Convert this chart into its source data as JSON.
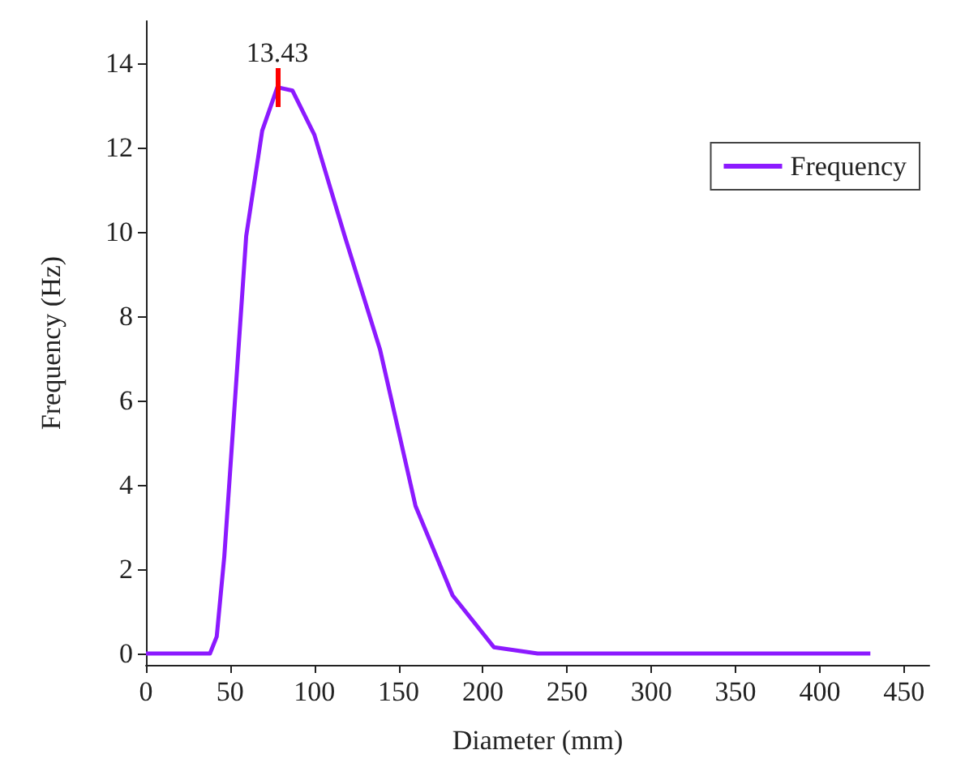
{
  "chart_data": {
    "type": "line",
    "xlabel": "Diameter (mm)",
    "ylabel": "Frequency (Hz)",
    "x": [
      0,
      38,
      42,
      46.5,
      59.5,
      69,
      78,
      87,
      100,
      118,
      139,
      160,
      182,
      206.5,
      232.5,
      430
    ],
    "series": [
      {
        "name": "Frequency",
        "color": "#8c1aff",
        "values": [
          0,
          0,
          0.4,
          2.3,
          9.9,
          12.4,
          13.43,
          13.35,
          12.3,
          9.9,
          7.2,
          3.5,
          1.38,
          0.15,
          0,
          0
        ]
      }
    ],
    "annotations": [
      {
        "text": "13.43",
        "x": 78,
        "y": 13.43
      }
    ],
    "xlim": [
      0,
      465
    ],
    "xticks": [
      0,
      50,
      100,
      150,
      200,
      250,
      300,
      350,
      400,
      450
    ],
    "ylim": [
      -0.27,
      15
    ],
    "yticks": [
      0,
      2,
      4,
      6,
      8,
      10,
      12,
      14
    ],
    "grid": false,
    "legend": "top right",
    "marker": "none",
    "line_style": "solid"
  }
}
